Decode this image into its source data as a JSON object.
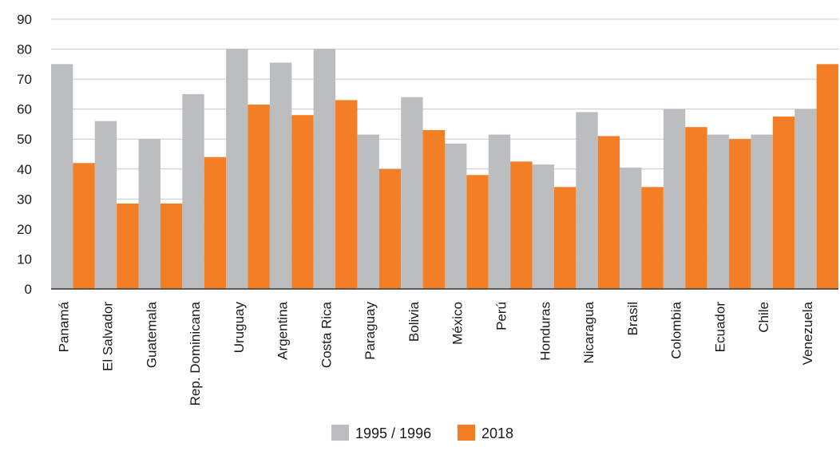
{
  "chart_data": {
    "type": "bar",
    "title": "",
    "xlabel": "",
    "ylabel": "",
    "ylim": [
      0,
      90
    ],
    "yticks": [
      0,
      10,
      20,
      30,
      40,
      50,
      60,
      70,
      80,
      90
    ],
    "grid": true,
    "legend_position": "bottom-center",
    "categories": [
      "Panamá",
      "El Salvador",
      "Guatemala",
      "Rep. Dominicana",
      "Uruguay",
      "Argentina",
      "Costa Rica",
      "Paraguay",
      "Bolivia",
      "México",
      "Perú",
      "Honduras",
      "Nicaragua",
      "Brasil",
      "Colombia",
      "Ecuador",
      "Chile",
      "Venezuela"
    ],
    "series": [
      {
        "name": "1995 / 1996",
        "color": "#bcbdbf",
        "values": [
          75,
          56,
          50,
          65,
          80,
          75.5,
          80,
          51.5,
          64,
          48.5,
          51.5,
          41.5,
          59,
          40.5,
          60,
          51.5,
          51.5,
          60
        ]
      },
      {
        "name": "2018",
        "color": "#f37e26",
        "values": [
          42,
          28.5,
          28.5,
          44,
          61.5,
          58,
          63,
          40,
          53,
          38,
          42.5,
          34,
          51,
          34,
          54,
          50,
          57.5,
          75
        ]
      }
    ]
  }
}
